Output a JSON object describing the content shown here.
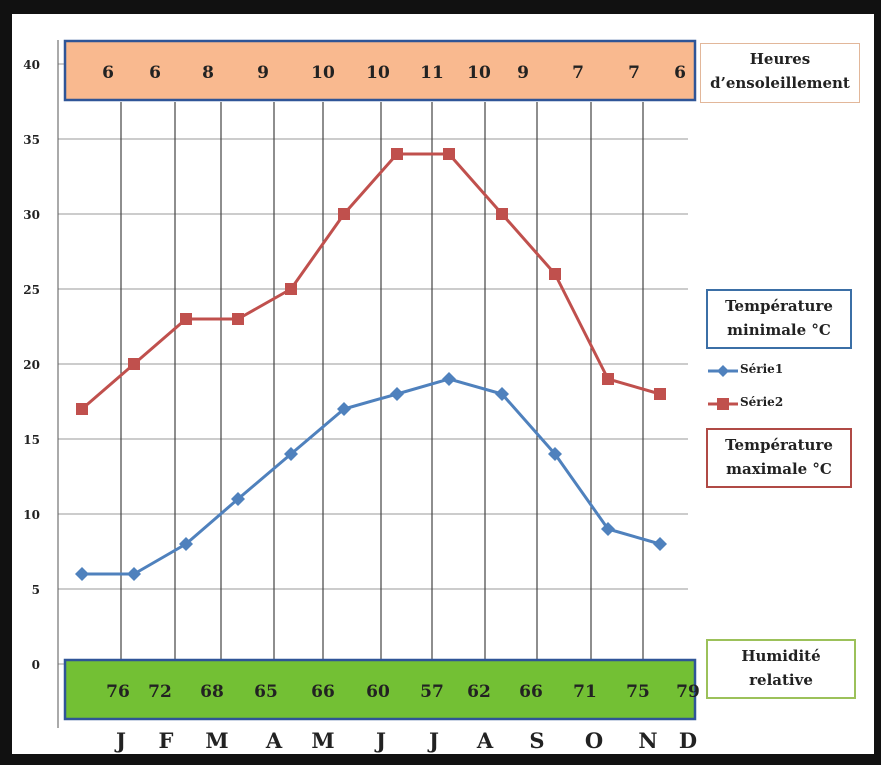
{
  "chart_data": {
    "type": "line",
    "months": [
      "J",
      "F",
      "M",
      "A",
      "M",
      "J",
      "J",
      "A",
      "S",
      "O",
      "N",
      "D"
    ],
    "yticks": [
      0,
      5,
      10,
      15,
      20,
      25,
      30,
      35,
      40
    ],
    "ylim": [
      0,
      40
    ],
    "grid": true,
    "sunshine_values": [
      "6",
      "6",
      "8",
      "9",
      "10",
      "10",
      "11",
      "10",
      "9",
      "7",
      "7",
      "6"
    ],
    "humidity_values": [
      "76",
      "72",
      "68",
      "65",
      "66",
      "60",
      "57",
      "62",
      "66",
      "71",
      "75",
      "79"
    ],
    "series": [
      {
        "name": "Série1",
        "marker": "diamond",
        "color": "#4f81bd",
        "values": [
          6,
          6,
          8,
          11,
          14,
          17,
          18,
          19,
          18,
          14,
          9,
          8
        ]
      },
      {
        "name": "Série2",
        "marker": "square",
        "color": "#c0504d",
        "values": [
          17,
          20,
          23,
          23,
          25,
          30,
          34,
          34,
          30,
          26,
          19,
          18
        ]
      }
    ],
    "colors": {
      "sun_band": "#f9b98f",
      "humidity_band": "#73c034",
      "grid": "#9a9a9a"
    }
  },
  "labels": {
    "sunshine_line1": "Heures",
    "sunshine_line2": "d’ensoleillement",
    "tmin_line1": "Température",
    "tmin_line2": "minimale °C",
    "tmax_line1": "Température",
    "tmax_line2": "maximale °C",
    "humidity_line1": "Humidité",
    "humidity_line2": "relative"
  }
}
